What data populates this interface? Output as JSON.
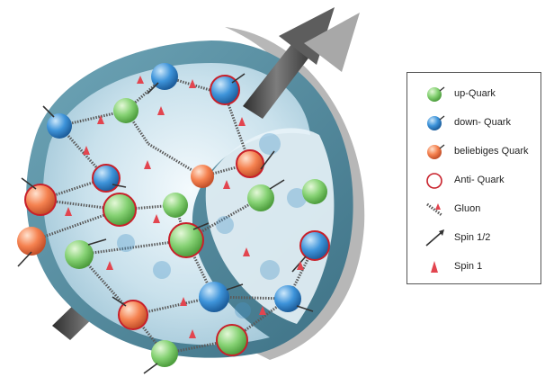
{
  "colors": {
    "up_quark": "#7fcf6c",
    "down_quark": "#3c92d8",
    "any_quark": "#f07a4a",
    "anti_quark_ring": "#c8202a",
    "gluon": "#555555",
    "spin_half": "#333333",
    "spin_one": "#e2454f",
    "outer_shell": "#4b8498",
    "inner_cut": "#9cc6d8",
    "axis_arrow": "#4a4a4a"
  },
  "legend": {
    "items": [
      {
        "symbol": "up-quark-icon",
        "label": "up-Quark"
      },
      {
        "symbol": "down-quark-icon",
        "label": "down- Quark"
      },
      {
        "symbol": "arbitrary-quark-icon",
        "label": "beliebiges Quark"
      },
      {
        "symbol": "anti-quark-icon",
        "label": "Anti- Quark"
      },
      {
        "symbol": "gluon-icon",
        "label": "Gluon"
      },
      {
        "symbol": "spin-half-arrow-icon",
        "label": "Spin 1/2"
      },
      {
        "symbol": "spin-one-cone-icon",
        "label": "Spin 1"
      }
    ]
  }
}
